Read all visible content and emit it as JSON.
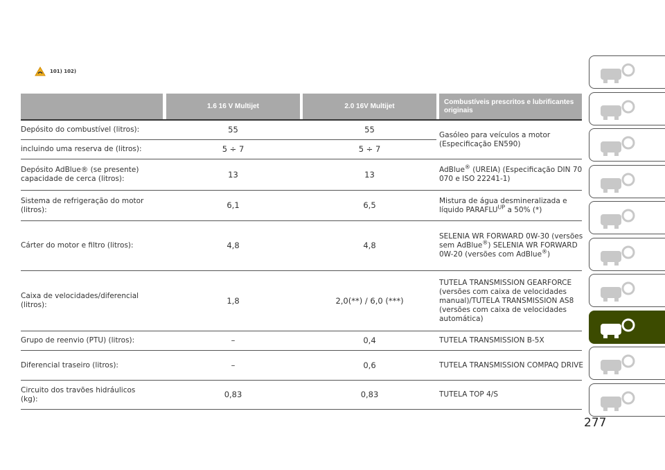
{
  "warning": {
    "icon": "warning-triangle-icon",
    "refs": "101)  102)"
  },
  "table": {
    "headers": [
      "",
      "1.6 16 V Multijet",
      "2.0 16V Multijet",
      "Combustíveis prescritos e lubrificantes originais"
    ],
    "rows": [
      {
        "label": "Depósito do combustível (litros):",
        "v1": "55",
        "v2": "55"
      },
      {
        "label": "incluindo uma reserva de (litros):",
        "v1": "5 ÷ 7",
        "v2": "5 ÷ 7"
      },
      {
        "label": "Depósito AdBlue® (se presente) capacidade de cerca (litros):",
        "v1": "13",
        "v2": "13"
      },
      {
        "label": "Sistema de refrigeração do motor (litros):",
        "v1": "6,1",
        "v2": "6,5"
      },
      {
        "label": "Cárter do motor e filtro (litros):",
        "v1": "4,8",
        "v2": "4,8"
      },
      {
        "label": "Caixa de velocidades/diferencial (litros):",
        "v1": "1,8",
        "v2": "2,0(**) / 6,0 (***)"
      },
      {
        "label": "Grupo de reenvio (PTU) (litros):",
        "v1": "–",
        "v2": "0,4",
        "spec": "TUTELA TRANSMISSION B-5X"
      },
      {
        "label": "Diferencial traseiro (litros):",
        "v1": "–",
        "v2": "0,6",
        "spec": "TUTELA TRANSMISSION COMPAQ DRIVE"
      },
      {
        "label": "Circuito dos travões hidráulicos (kg):",
        "v1": "0,83",
        "v2": "0,83",
        "spec": "TUTELA TOP 4/S"
      }
    ],
    "specs": {
      "fuel": "Gasóleo para veículos a motor (Especificação EN590)",
      "adblue_a": "AdBlue",
      "adblue_sup": "®",
      "adblue_b": " (UREIA) (Especificação DIN 70 070 e ISO 22241-1)",
      "cool_a": "Mistura de água desmineralizada e líquido PARAFLU",
      "cool_sup": "UP",
      "cool_b": " a 50% (*)",
      "oil_a": "SELENIA WR FORWARD 0W-30 (versões sem AdBlue",
      "oil_sup": "®",
      "oil_b": ") SELENIA WR FORWARD 0W-20 (versões com AdBlue",
      "oil_sup2": "®",
      "oil_c": ")",
      "gear": "TUTELA TRANSMISSION GEARFORCE (versões com caixa de velocidades manual)/TUTELA TRANSMISSION AS8 (versões com caixa de velocidades automática)"
    }
  },
  "side_tabs": [
    "car-search-icon",
    "car-info-icon",
    "warning-lights-message-icon",
    "airbag-seatbelt-icon",
    "key-steering-icon",
    "car-breakdown-icon",
    "car-wrench-icon",
    "specs-gears-icon",
    "multimedia-icon",
    "index-search-icon"
  ],
  "active_tab": 7,
  "accent_color": "#3c4b00",
  "page_number": "277"
}
